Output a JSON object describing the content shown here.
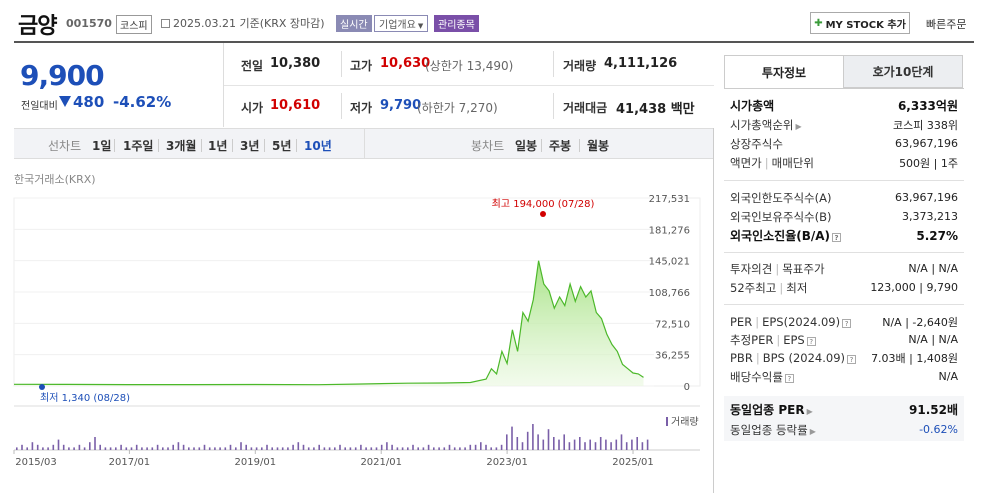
{
  "header": {
    "name": "금양",
    "code": "001570",
    "market": "코스피",
    "date": "2025.03.21 기준(KRX 장마감)",
    "realtime": "실시간",
    "corp_info": "기업개요",
    "managed": "관리종목",
    "mystock_btn": "MY STOCK 추가",
    "quick_order": "빠른주문"
  },
  "price": {
    "current": "9,900",
    "change_label": "전일대비",
    "change": "480",
    "change_pct": "-4.62%",
    "direction": "down"
  },
  "stats": {
    "prev_label": "전일",
    "prev": "10,380",
    "high_label": "고가",
    "high": "10,630",
    "upper_limit": "(상한가 13,490)",
    "volume_label": "거래량",
    "volume": "4,111,126",
    "open_label": "시가",
    "open": "10,610",
    "low_label": "저가",
    "low": "9,790",
    "lower_limit": "(하한가 7,270)",
    "amount_label": "거래대금",
    "amount": "41,438 백만"
  },
  "periods": {
    "label": "선차트",
    "items": [
      "1일",
      "1주일",
      "3개월",
      "1년",
      "3년",
      "5년",
      "10년"
    ],
    "selected": "10년",
    "candle_label": "봉차트",
    "candle_items": [
      "일봉",
      "주봉",
      "월봉"
    ]
  },
  "chart": {
    "source": "한국거래소(KRX)",
    "max_label": "최고 194,000 (07/28)",
    "min_label": "최저 1,340 (08/28)",
    "volume_label": "거래량"
  },
  "chart_data": {
    "type": "area",
    "x_ticks": [
      "2015/03",
      "2017/01",
      "2019/01",
      "2021/01",
      "2023/01",
      "2025/01"
    ],
    "y_ticks": [
      "217,531",
      "181,276",
      "145,021",
      "108,766",
      "72,510",
      "36,255",
      "0"
    ],
    "ylim": [
      0,
      217531
    ],
    "series": [
      {
        "values": [
          {
            "x": "2015/03",
            "y": 2000
          },
          {
            "x": "2016/01",
            "y": 1800
          },
          {
            "x": "2017/01",
            "y": 1600
          },
          {
            "x": "2018/01",
            "y": 1600
          },
          {
            "x": "2019/01",
            "y": 1700
          },
          {
            "x": "2020/01",
            "y": 1500
          },
          {
            "x": "2020/08",
            "y": 2200
          },
          {
            "x": "2021/06",
            "y": 3200
          },
          {
            "x": "2022/01",
            "y": 3500
          },
          {
            "x": "2022/06",
            "y": 4000
          },
          {
            "x": "2022/09",
            "y": 8000
          },
          {
            "x": "2022/10",
            "y": 20000
          },
          {
            "x": "2022/11",
            "y": 14000
          },
          {
            "x": "2022/12",
            "y": 40000
          },
          {
            "x": "2023/01",
            "y": 26000
          },
          {
            "x": "2023/02",
            "y": 65000
          },
          {
            "x": "2023/03",
            "y": 40000
          },
          {
            "x": "2023/04",
            "y": 85000
          },
          {
            "x": "2023/05",
            "y": 75000
          },
          {
            "x": "2023/06",
            "y": 100000
          },
          {
            "x": "2023/07",
            "y": 145000
          },
          {
            "x": "2023/08",
            "y": 118000
          },
          {
            "x": "2023/09",
            "y": 110000
          },
          {
            "x": "2023/10",
            "y": 90000
          },
          {
            "x": "2023/11",
            "y": 103000
          },
          {
            "x": "2023/12",
            "y": 93000
          },
          {
            "x": "2024/01",
            "y": 118000
          },
          {
            "x": "2024/02",
            "y": 98000
          },
          {
            "x": "2024/03",
            "y": 115000
          },
          {
            "x": "2024/04",
            "y": 103000
          },
          {
            "x": "2024/05",
            "y": 110000
          },
          {
            "x": "2024/06",
            "y": 85000
          },
          {
            "x": "2024/07",
            "y": 78000
          },
          {
            "x": "2024/08",
            "y": 60000
          },
          {
            "x": "2024/09",
            "y": 48000
          },
          {
            "x": "2024/10",
            "y": 40000
          },
          {
            "x": "2024/11",
            "y": 25000
          },
          {
            "x": "2024/12",
            "y": 20000
          },
          {
            "x": "2025/01",
            "y": 15000
          },
          {
            "x": "2025/02",
            "y": 14000
          },
          {
            "x": "2025/03",
            "y": 9900
          }
        ]
      }
    ],
    "volume_intensity": [
      1,
      2,
      1,
      3,
      2,
      1,
      1,
      2,
      4,
      2,
      1,
      1,
      2,
      1,
      3,
      5,
      2,
      1,
      1,
      1,
      2,
      1,
      1,
      2,
      1,
      1,
      1,
      2,
      1,
      1,
      2,
      3,
      2,
      1,
      1,
      1,
      2,
      1,
      1,
      1,
      1,
      2,
      1,
      3,
      2,
      1,
      1,
      1,
      2,
      1,
      1,
      1,
      1,
      2,
      3,
      2,
      1,
      1,
      2,
      1,
      1,
      1,
      2,
      1,
      1,
      1,
      2,
      1,
      1,
      1,
      2,
      3,
      2,
      1,
      1,
      1,
      2,
      1,
      1,
      2,
      1,
      1,
      1,
      2,
      1,
      1,
      1,
      2,
      2,
      3,
      2,
      1,
      1,
      2,
      6,
      9,
      5,
      3,
      7,
      10,
      6,
      4,
      8,
      5,
      4,
      6,
      3,
      4,
      5,
      3,
      4,
      3,
      5,
      4,
      3,
      4,
      6,
      3,
      4,
      5,
      3,
      4
    ]
  },
  "panel": {
    "tab_invest": "투자정보",
    "tab_quote": "호가10단계",
    "market_cap_label": "시가총액",
    "market_cap": "6,333억원",
    "cap_rank_label": "시가총액순위",
    "cap_rank": "코스피 338위",
    "shares_label": "상장주식수",
    "shares": "63,967,196",
    "par_label": "액면가",
    "unit_label": "매매단위",
    "par_unit": "500원 | 1주",
    "foreign_limit_label": "외국인한도주식수(A)",
    "foreign_limit": "63,967,196",
    "foreign_hold_label": "외국인보유주식수(B)",
    "foreign_hold": "3,373,213",
    "foreign_ratio_label": "외국인소진율(B/A)",
    "foreign_ratio": "5.27%",
    "opinion_label": "투자의견",
    "target_label": "목표주가",
    "opinion_target": "N/A | N/A",
    "w52_label": "52주최고",
    "w52_low_label": "최저",
    "w52": "123,000 | 9,790",
    "per_label": "PER",
    "eps_label": "EPS(2024.09)",
    "per_eps": "N/A | -2,640원",
    "eper_label": "추정PER",
    "eeps_label": "EPS",
    "eper_eps": "N/A | N/A",
    "pbr_label": "PBR",
    "bps_label": "BPS (2024.09)",
    "pbr_bps": "7.03배 | 1,408원",
    "div_label": "배당수익률",
    "div": "N/A",
    "sector_per_label": "동일업종 PER",
    "sector_per": "91.52배",
    "sector_rate_label": "동일업종 등락률",
    "sector_rate": "-0.62%"
  }
}
